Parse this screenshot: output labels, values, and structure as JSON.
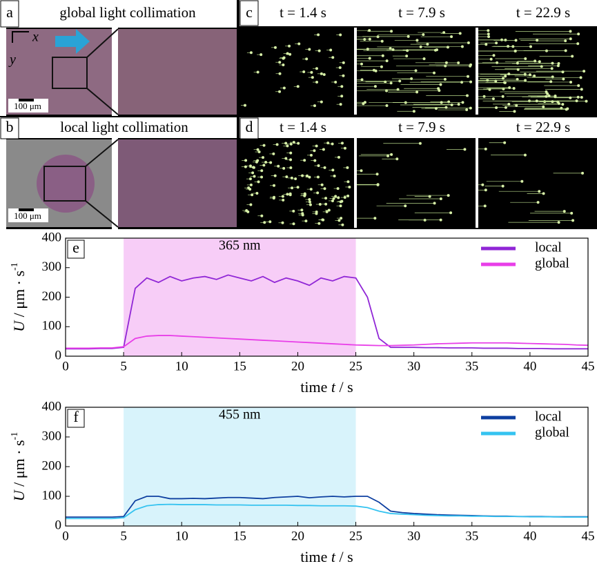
{
  "panels": {
    "a": {
      "label": "a",
      "title": "global light collimation"
    },
    "b": {
      "label": "b",
      "title": "local light collimation"
    },
    "axis_x": "x",
    "axis_y": "y",
    "scale_bar": "100 μm",
    "c": {
      "label": "c",
      "times": [
        "t = 1.4 s",
        "t = 7.9 s",
        "t = 22.9 s"
      ]
    },
    "d": {
      "label": "d",
      "times": [
        "t = 1.4 s",
        "t = 7.9 s",
        "t = 22.9 s"
      ]
    }
  },
  "chart_data": [
    {
      "type": "line",
      "label": "e",
      "xlabel": {
        "main": "time ",
        "var": "t",
        "unit": " / s"
      },
      "ylabel": {
        "var": "U",
        "main": " / μm · s",
        "sup": "-1"
      },
      "highlight": {
        "range": [
          5,
          25
        ],
        "label": "365 nm",
        "color": "#f7cdf7"
      },
      "xlim": [
        0,
        45
      ],
      "ylim": [
        0,
        400
      ],
      "xticks": [
        0,
        5,
        10,
        15,
        20,
        25,
        30,
        35,
        40,
        45
      ],
      "yticks": [
        0,
        100,
        200,
        300,
        400
      ],
      "legend": "top-right",
      "x": [
        0,
        1,
        2,
        3,
        4,
        5,
        6,
        7,
        8,
        9,
        10,
        11,
        12,
        13,
        14,
        15,
        16,
        17,
        18,
        19,
        20,
        21,
        22,
        23,
        24,
        25,
        26,
        27,
        28,
        29,
        30,
        31,
        32,
        33,
        34,
        35,
        36,
        37,
        38,
        39,
        40,
        41,
        42,
        43,
        44,
        45
      ],
      "series": [
        {
          "name": "local",
          "color": "#9026d6",
          "values": [
            25,
            25,
            25,
            26,
            26,
            30,
            230,
            265,
            250,
            270,
            255,
            265,
            270,
            260,
            275,
            265,
            255,
            270,
            250,
            265,
            255,
            240,
            265,
            255,
            270,
            265,
            200,
            60,
            30,
            30,
            30,
            29,
            29,
            28,
            28,
            28,
            27,
            27,
            27,
            26,
            26,
            26,
            25,
            25,
            25,
            25
          ]
        },
        {
          "name": "global",
          "color": "#e83ee8",
          "values": [
            27,
            27,
            27,
            28,
            28,
            32,
            60,
            68,
            70,
            70,
            68,
            66,
            64,
            62,
            60,
            58,
            56,
            54,
            52,
            50,
            48,
            46,
            44,
            42,
            40,
            38,
            37,
            36,
            36,
            37,
            38,
            40,
            42,
            43,
            44,
            45,
            45,
            45,
            45,
            44,
            43,
            42,
            41,
            40,
            38,
            37
          ]
        }
      ]
    },
    {
      "type": "line",
      "label": "f",
      "xlabel": {
        "main": "time ",
        "var": "t",
        "unit": " / s"
      },
      "ylabel": {
        "var": "U",
        "main": " / μm · s",
        "sup": "-1"
      },
      "highlight": {
        "range": [
          5,
          25
        ],
        "label": "455 nm",
        "color": "#d8f3fb"
      },
      "xlim": [
        0,
        45
      ],
      "ylim": [
        0,
        400
      ],
      "xticks": [
        0,
        5,
        10,
        15,
        20,
        25,
        30,
        35,
        40,
        45
      ],
      "yticks": [
        0,
        100,
        200,
        300,
        400
      ],
      "legend": "top-right",
      "x": [
        0,
        1,
        2,
        3,
        4,
        5,
        6,
        7,
        8,
        9,
        10,
        11,
        12,
        13,
        14,
        15,
        16,
        17,
        18,
        19,
        20,
        21,
        22,
        23,
        24,
        25,
        26,
        27,
        28,
        29,
        30,
        31,
        32,
        33,
        34,
        35,
        36,
        37,
        38,
        39,
        40,
        41,
        42,
        43,
        44,
        45
      ],
      "series": [
        {
          "name": "local",
          "color": "#0d3fa0",
          "values": [
            30,
            30,
            30,
            30,
            30,
            32,
            85,
            100,
            100,
            92,
            92,
            93,
            92,
            94,
            96,
            96,
            94,
            92,
            96,
            98,
            100,
            95,
            98,
            100,
            98,
            100,
            100,
            80,
            50,
            45,
            42,
            40,
            38,
            37,
            36,
            35,
            34,
            33,
            33,
            32,
            32,
            32,
            31,
            31,
            31,
            31
          ]
        },
        {
          "name": "global",
          "color": "#35c3f0",
          "values": [
            25,
            25,
            25,
            25,
            25,
            28,
            55,
            68,
            72,
            73,
            72,
            72,
            72,
            71,
            71,
            71,
            70,
            70,
            70,
            70,
            69,
            69,
            68,
            68,
            68,
            67,
            62,
            50,
            42,
            40,
            38,
            36,
            35,
            34,
            34,
            33,
            33,
            32,
            32,
            32,
            31,
            31,
            31,
            30,
            30,
            30
          ]
        }
      ]
    }
  ]
}
